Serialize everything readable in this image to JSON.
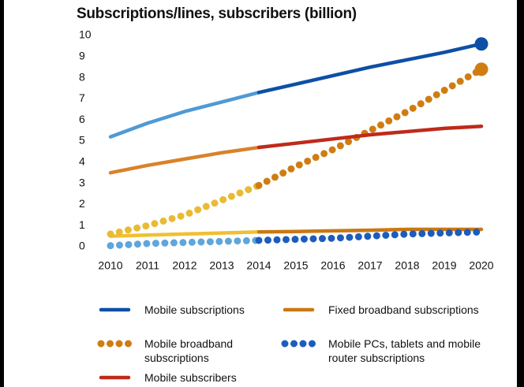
{
  "chart_data": {
    "type": "line",
    "title": "Subscriptions/lines, subscribers (billion)",
    "x": [
      2010,
      2011,
      2012,
      2013,
      2014,
      2015,
      2016,
      2017,
      2018,
      2019,
      2020
    ],
    "xlim": [
      2010,
      2020
    ],
    "xticks": [
      2010,
      2011,
      2012,
      2013,
      2014,
      2015,
      2016,
      2017,
      2018,
      2019,
      2020
    ],
    "ylim": [
      0,
      10
    ],
    "yticks": [
      0,
      1,
      2,
      3,
      4,
      5,
      6,
      7,
      8,
      9,
      10
    ],
    "grid": false,
    "forecast_start": 2014,
    "series": [
      {
        "name": "Mobile subscriptions",
        "style": "solid",
        "color": "#0d4fa6",
        "history_color": "#4f9ad6",
        "end_marker": true,
        "values": [
          5.2,
          5.85,
          6.4,
          6.85,
          7.3,
          7.7,
          8.1,
          8.5,
          8.85,
          9.2,
          9.6
        ]
      },
      {
        "name": "Fixed broadband subscriptions",
        "style": "solid",
        "color": "#c97812",
        "history_color": "#f0c032",
        "end_marker": false,
        "values": [
          0.5,
          0.55,
          0.6,
          0.65,
          0.7,
          0.72,
          0.75,
          0.78,
          0.82,
          0.82,
          0.82
        ]
      },
      {
        "name": "Mobile broadband subscriptions",
        "style": "dotted",
        "color": "#cf7d12",
        "history_color": "#e9bb34",
        "end_marker": true,
        "values": [
          0.6,
          1.0,
          1.5,
          2.2,
          2.9,
          3.8,
          4.6,
          5.5,
          6.4,
          7.4,
          8.4
        ]
      },
      {
        "name": "Mobile PCs, tablets and mobile router subscriptions",
        "style": "dotted",
        "color": "#1c5cbd",
        "history_color": "#5ea6dc",
        "end_marker": false,
        "values": [
          0.05,
          0.15,
          0.2,
          0.25,
          0.3,
          0.35,
          0.4,
          0.5,
          0.6,
          0.65,
          0.7
        ]
      },
      {
        "name": "Mobile subscribers",
        "style": "solid",
        "color": "#bf2a1a",
        "history_color": "#d9822b",
        "end_marker": false,
        "values": [
          3.5,
          3.85,
          4.15,
          4.45,
          4.7,
          4.9,
          5.1,
          5.3,
          5.45,
          5.6,
          5.7
        ]
      }
    ]
  }
}
